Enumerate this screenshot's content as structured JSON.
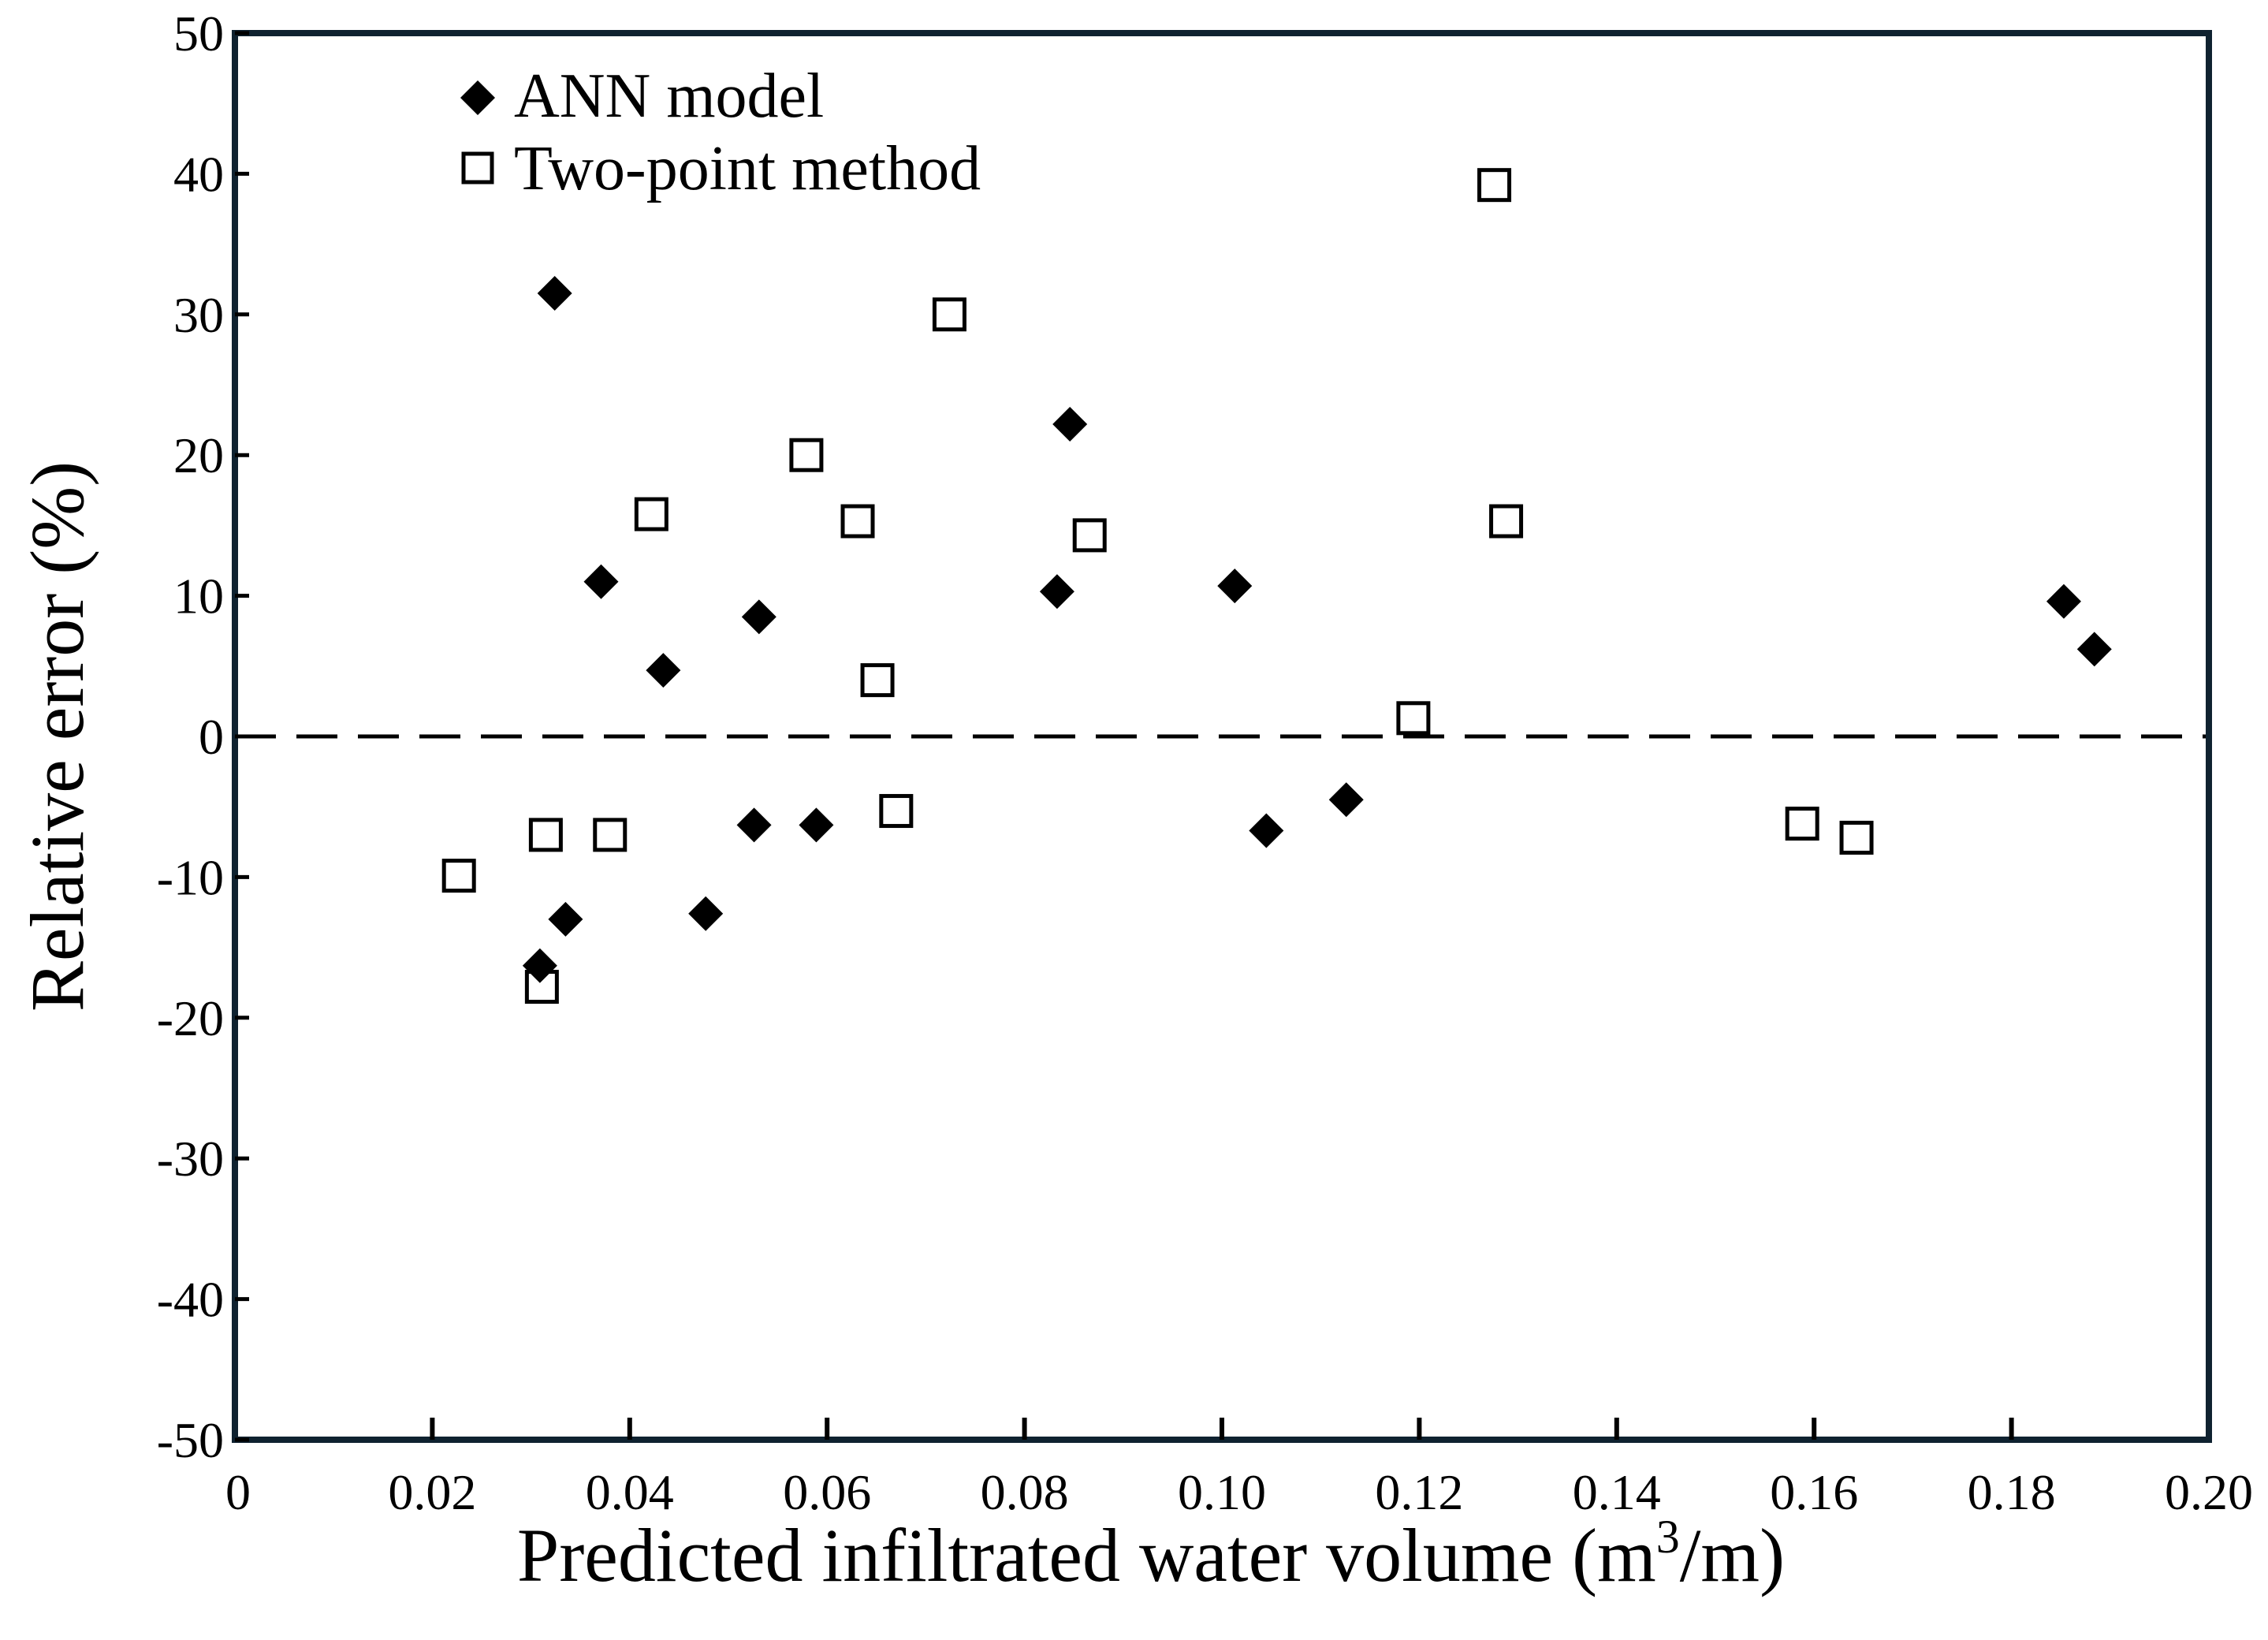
{
  "chart_data": {
    "type": "scatter",
    "title": "",
    "xlabel": "Predicted infiltrated water volume (m",
    "xlabel_sup": "3",
    "xlabel_end": "/m)",
    "ylabel": "Relative error (%)",
    "xlim": [
      0,
      0.2
    ],
    "ylim": [
      -50,
      50
    ],
    "x_ticks": [
      0,
      0.02,
      0.04,
      0.06,
      0.08,
      0.1,
      0.12,
      0.14,
      0.16,
      0.18,
      0.2
    ],
    "x_tick_labels": [
      "0",
      "0.02",
      "0.04",
      "0.06",
      "0.08",
      "0.10",
      "0.12",
      "0.14",
      "0.16",
      "0.18",
      "0.20"
    ],
    "y_ticks": [
      50,
      40,
      30,
      20,
      10,
      0,
      -10,
      -20,
      -30,
      -40,
      -50
    ],
    "y_tick_labels": [
      "50",
      "40",
      "30",
      "20",
      "10",
      "0",
      "-10",
      "-20",
      "-30",
      "-40",
      "-50"
    ],
    "reference_line": {
      "y": 0,
      "style": "dashed"
    },
    "legend_position": "top-left",
    "series": [
      {
        "name": "ANN model",
        "marker": "filled-diamond",
        "color": "#000000",
        "points": [
          {
            "x": 0.0324,
            "y": 31.5
          },
          {
            "x": 0.0371,
            "y": 11.0
          },
          {
            "x": 0.0434,
            "y": 4.7
          },
          {
            "x": 0.0531,
            "y": 8.5
          },
          {
            "x": 0.0846,
            "y": 22.2
          },
          {
            "x": 0.0833,
            "y": 10.3
          },
          {
            "x": 0.1013,
            "y": 10.7
          },
          {
            "x": 0.1853,
            "y": 9.6
          },
          {
            "x": 0.1884,
            "y": 6.2
          },
          {
            "x": 0.0526,
            "y": -6.3
          },
          {
            "x": 0.0589,
            "y": -6.3
          },
          {
            "x": 0.0335,
            "y": -13.0
          },
          {
            "x": 0.0477,
            "y": -12.6
          },
          {
            "x": 0.0309,
            "y": -16.3
          },
          {
            "x": 0.1045,
            "y": -6.7
          },
          {
            "x": 0.1126,
            "y": -4.5
          }
        ]
      },
      {
        "name": "Two-point method",
        "marker": "open-square",
        "color": "#000000",
        "points": [
          {
            "x": 0.0724,
            "y": 30.0
          },
          {
            "x": 0.0579,
            "y": 20.0
          },
          {
            "x": 0.0422,
            "y": 15.8
          },
          {
            "x": 0.0631,
            "y": 15.3
          },
          {
            "x": 0.0866,
            "y": 14.3
          },
          {
            "x": 0.0651,
            "y": 4.0
          },
          {
            "x": 0.1276,
            "y": 39.2
          },
          {
            "x": 0.1288,
            "y": 15.3
          },
          {
            "x": 0.1194,
            "y": 1.3
          },
          {
            "x": 0.067,
            "y": -5.3
          },
          {
            "x": 0.0227,
            "y": -9.9
          },
          {
            "x": 0.0315,
            "y": -7.0
          },
          {
            "x": 0.038,
            "y": -7.0
          },
          {
            "x": 0.0311,
            "y": -17.8
          },
          {
            "x": 0.1588,
            "y": -6.2
          },
          {
            "x": 0.1643,
            "y": -7.2
          }
        ]
      }
    ]
  },
  "colors": {
    "frame": "#0f2230",
    "axis": "#000000",
    "marker": "#000000",
    "background": "#ffffff"
  }
}
